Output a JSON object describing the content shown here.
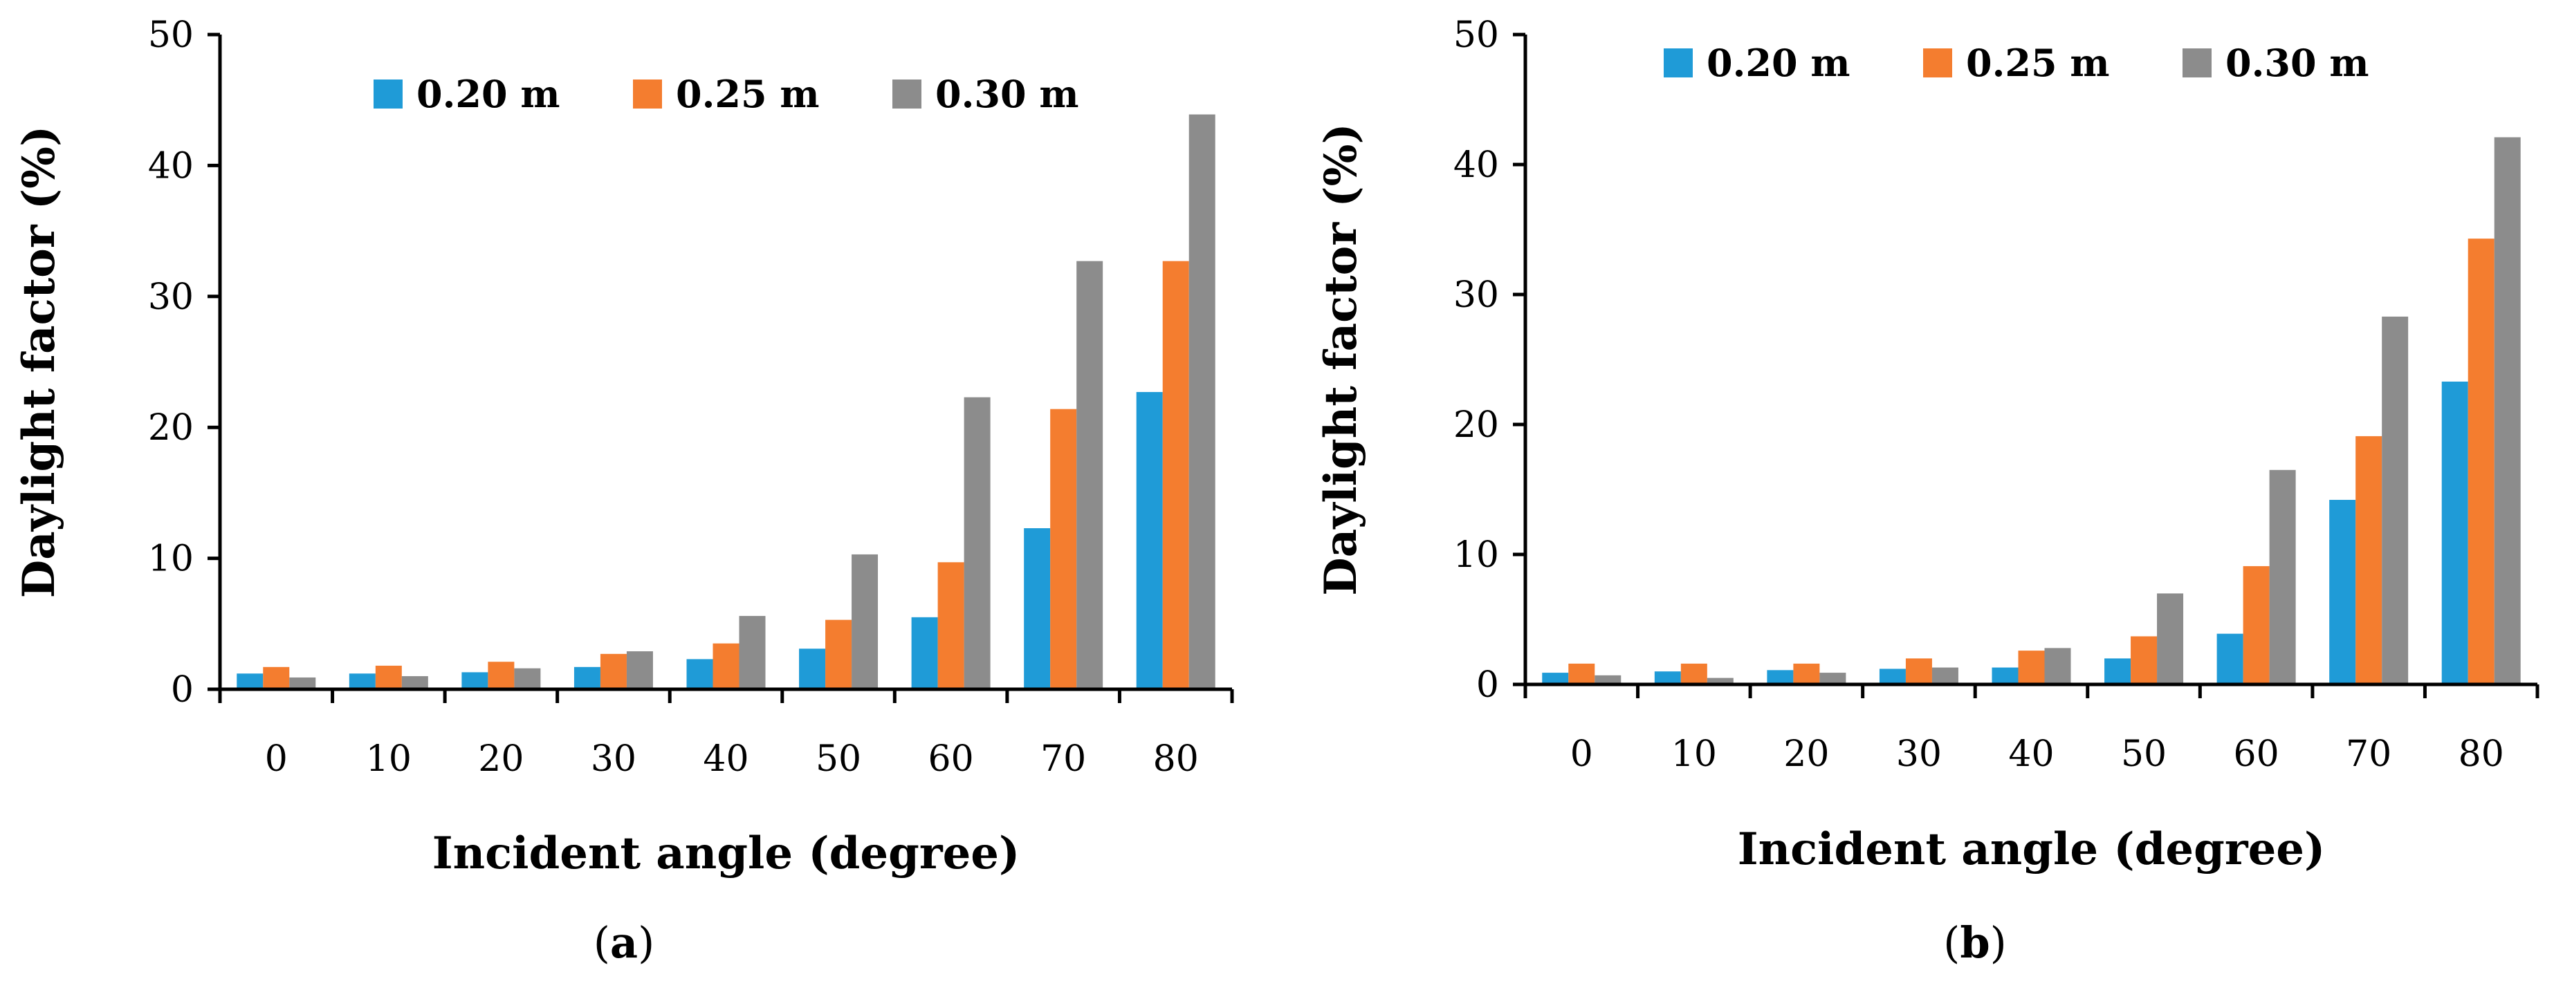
{
  "chart_data": [
    {
      "type": "bar",
      "caption": "(a)",
      "caption_letter": "a",
      "xlabel": "Incident angle (degree)",
      "ylabel": "Daylight factor (%)",
      "ylim": [
        0,
        50
      ],
      "yticks": [
        0,
        10,
        20,
        30,
        40,
        50
      ],
      "categories": [
        "0",
        "10",
        "20",
        "30",
        "40",
        "50",
        "60",
        "70",
        "80"
      ],
      "legend_position": "top",
      "series": [
        {
          "name": "0.20 m",
          "color": "#1f9bd7",
          "values": [
            1.2,
            1.2,
            1.3,
            1.7,
            2.3,
            3.1,
            5.5,
            12.3,
            22.7
          ]
        },
        {
          "name": "0.25 m",
          "color": "#f47d2f",
          "values": [
            1.7,
            1.8,
            2.1,
            2.7,
            3.5,
            5.3,
            9.7,
            21.4,
            32.7
          ]
        },
        {
          "name": "0.30 m",
          "color": "#8c8c8c",
          "values": [
            0.9,
            1.0,
            1.6,
            2.9,
            5.6,
            10.3,
            22.3,
            32.7,
            43.9
          ]
        }
      ]
    },
    {
      "type": "bar",
      "caption": "(b)",
      "caption_letter": "b",
      "xlabel": "Incident angle (degree)",
      "ylabel": "Daylight factor (%)",
      "ylim": [
        0,
        50
      ],
      "yticks": [
        0,
        10,
        20,
        30,
        40,
        50
      ],
      "categories": [
        "0",
        "10",
        "20",
        "30",
        "40",
        "50",
        "60",
        "70",
        "80"
      ],
      "legend_position": "top",
      "series": [
        {
          "name": "0.20 m",
          "color": "#1f9bd7",
          "values": [
            0.9,
            1.0,
            1.1,
            1.2,
            1.3,
            2.0,
            3.9,
            14.2,
            23.3
          ]
        },
        {
          "name": "0.25 m",
          "color": "#f47d2f",
          "values": [
            1.6,
            1.6,
            1.6,
            2.0,
            2.6,
            3.7,
            9.1,
            19.1,
            34.3
          ]
        },
        {
          "name": "0.30 m",
          "color": "#8c8c8c",
          "values": [
            0.7,
            0.5,
            0.9,
            1.3,
            2.8,
            7.0,
            16.5,
            28.3,
            42.1
          ]
        }
      ]
    }
  ]
}
